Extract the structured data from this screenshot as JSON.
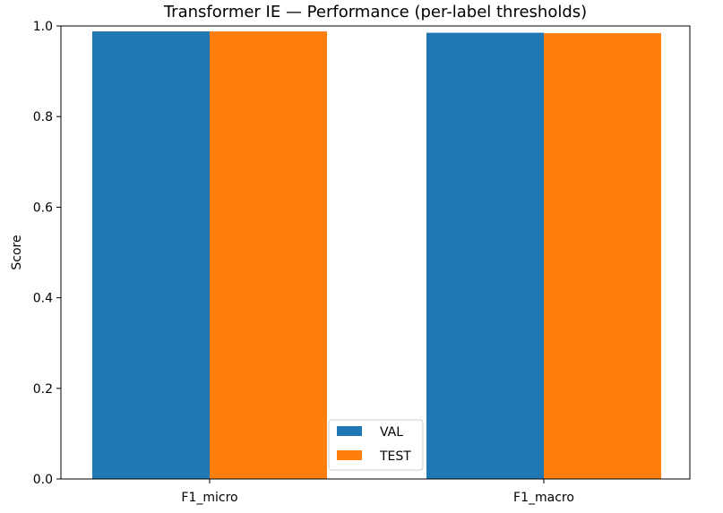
{
  "chart_data": {
    "type": "bar",
    "title": "Transformer IE — Performance (per-label thresholds)",
    "xlabel": "",
    "ylabel": "Score",
    "categories": [
      "F1_micro",
      "F1_macro"
    ],
    "series": [
      {
        "name": "VAL",
        "values": [
          0.988,
          0.985
        ],
        "color": "#1f77b4"
      },
      {
        "name": "TEST",
        "values": [
          0.988,
          0.984
        ],
        "color": "#ff7f0e"
      }
    ],
    "ylim": [
      0,
      1.0
    ],
    "yticks": [
      "0.0",
      "0.2",
      "0.4",
      "0.6",
      "0.8",
      "1.0"
    ],
    "grid": false,
    "legend_position": "bottom-center"
  }
}
